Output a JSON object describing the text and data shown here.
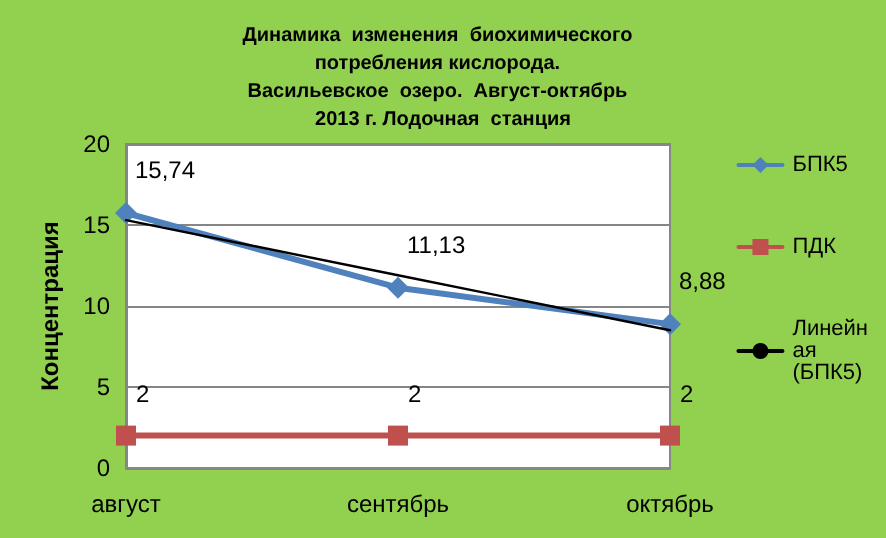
{
  "chart_data": {
    "type": "line",
    "title": "Динамика  изменения  биохимического  потребления кислорода.  Васильевское  озеро.  Август-октябрь  2013 г. Лодочная  станция",
    "ylabel": "Концентрация",
    "categories": [
      "август",
      "сентябрь",
      "октябрь"
    ],
    "series": [
      {
        "name": "БПК5",
        "color": "#4f81bd",
        "marker": "diamond",
        "values": [
          15.74,
          11.13,
          8.88
        ],
        "value_labels": [
          "15,74",
          "11,13",
          "8,88"
        ]
      },
      {
        "name": "ПДК",
        "color": "#c0504d",
        "marker": "square",
        "values": [
          2,
          2,
          2
        ],
        "value_labels": [
          "2",
          "2",
          "2"
        ]
      },
      {
        "name": "Линейная (БПК5)",
        "color": "#000000",
        "marker": "none",
        "values": [
          15.3,
          11.9,
          8.5
        ]
      }
    ],
    "ylim": [
      0,
      20
    ],
    "yticks": [
      0,
      5,
      10,
      15,
      20
    ],
    "grid": "y",
    "legend": "right"
  }
}
